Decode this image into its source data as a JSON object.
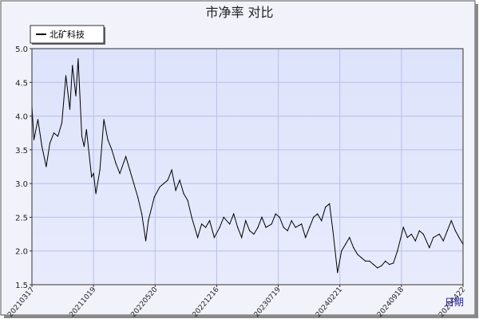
{
  "chart_data": {
    "type": "line",
    "title": "市净率 对比",
    "xlabel": "",
    "ylabel": "",
    "ylim": [
      1.5,
      5.0
    ],
    "y_ticks": [
      "1.5",
      "2.0",
      "2.5",
      "3.0",
      "3.5",
      "4.0",
      "4.5",
      "5.0"
    ],
    "x_tick_labels": [
      "20210317",
      "20211019",
      "20220520",
      "20221216",
      "20230719",
      "20240221",
      "20240918",
      "20250422"
    ],
    "grid": true,
    "legend_position": "top-left",
    "corner_label": "日期",
    "colors": {
      "background": "#f2f2fb",
      "plot_bg_top": "#dde3fb",
      "plot_bg_bottom": "#e8ebfc",
      "line": "#000000",
      "grid": "#b7bfe8",
      "frame": "#333333"
    },
    "x": [
      "2021-03-17",
      "2021-03-24",
      "2021-04-07",
      "2021-04-21",
      "2021-05-06",
      "2021-05-19",
      "2021-06-02",
      "2021-06-16",
      "2021-06-30",
      "2021-07-14",
      "2021-07-28",
      "2021-08-06",
      "2021-08-18",
      "2021-08-26",
      "2021-09-08",
      "2021-09-16",
      "2021-09-24",
      "2021-10-12",
      "2021-10-19",
      "2021-10-27",
      "2021-11-10",
      "2021-11-24",
      "2021-12-08",
      "2021-12-22",
      "2022-01-05",
      "2022-01-19",
      "2022-02-09",
      "2022-02-23",
      "2022-03-09",
      "2022-03-23",
      "2022-04-06",
      "2022-04-20",
      "2022-04-29",
      "2022-05-20",
      "2022-06-08",
      "2022-06-22",
      "2022-07-06",
      "2022-07-20",
      "2022-08-03",
      "2022-08-17",
      "2022-08-31",
      "2022-09-14",
      "2022-09-28",
      "2022-10-19",
      "2022-11-02",
      "2022-11-16",
      "2022-11-30",
      "2022-12-16",
      "2023-01-04",
      "2023-01-18",
      "2023-02-08",
      "2023-02-22",
      "2023-03-08",
      "2023-03-22",
      "2023-04-05",
      "2023-04-19",
      "2023-05-04",
      "2023-05-18",
      "2023-06-01",
      "2023-06-15",
      "2023-07-05",
      "2023-07-19",
      "2023-08-02",
      "2023-08-16",
      "2023-08-30",
      "2023-09-13",
      "2023-09-27",
      "2023-10-18",
      "2023-11-01",
      "2023-11-15",
      "2023-11-29",
      "2023-12-13",
      "2023-12-27",
      "2024-01-10",
      "2024-01-24",
      "2024-02-05",
      "2024-02-21",
      "2024-03-06",
      "2024-03-20",
      "2024-04-03",
      "2024-04-17",
      "2024-05-01",
      "2024-05-15",
      "2024-05-29",
      "2024-06-12",
      "2024-06-26",
      "2024-07-10",
      "2024-07-24",
      "2024-08-07",
      "2024-08-21",
      "2024-09-04",
      "2024-09-18",
      "2024-10-09",
      "2024-10-23",
      "2024-11-06",
      "2024-11-20",
      "2024-12-04",
      "2024-12-18",
      "2025-01-08",
      "2025-01-22",
      "2025-02-12",
      "2025-02-26",
      "2025-03-12",
      "2025-03-26",
      "2025-04-09",
      "2025-04-22",
      "2025-05-06"
    ],
    "series": [
      {
        "name": "北矿科技",
        "values": [
          4.15,
          3.65,
          3.95,
          3.55,
          3.25,
          3.6,
          3.75,
          3.7,
          3.9,
          4.6,
          4.1,
          4.75,
          4.3,
          4.85,
          3.7,
          3.55,
          3.8,
          3.1,
          3.15,
          2.85,
          3.2,
          3.95,
          3.65,
          3.5,
          3.3,
          3.15,
          3.4,
          3.2,
          3.0,
          2.8,
          2.55,
          2.15,
          2.45,
          2.8,
          2.95,
          3.0,
          3.05,
          3.2,
          2.9,
          3.05,
          2.85,
          2.75,
          2.5,
          2.2,
          2.4,
          2.35,
          2.45,
          2.2,
          2.35,
          2.5,
          2.4,
          2.55,
          2.35,
          2.2,
          2.45,
          2.3,
          2.25,
          2.35,
          2.5,
          2.35,
          2.4,
          2.55,
          2.5,
          2.35,
          2.3,
          2.45,
          2.35,
          2.4,
          2.2,
          2.35,
          2.5,
          2.55,
          2.45,
          2.65,
          2.7,
          2.3,
          1.68,
          2.0,
          2.1,
          2.2,
          2.05,
          1.95,
          1.9,
          1.85,
          1.85,
          1.8,
          1.75,
          1.78,
          1.85,
          1.8,
          1.82,
          2.0,
          2.35,
          2.2,
          2.25,
          2.15,
          2.3,
          2.25,
          2.05,
          2.2,
          2.25,
          2.15,
          2.3,
          2.45,
          2.3,
          2.2,
          2.1
        ]
      }
    ]
  }
}
